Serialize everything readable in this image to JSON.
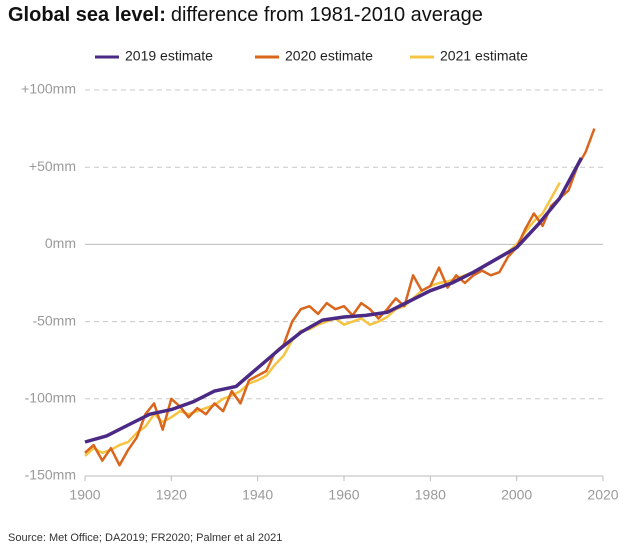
{
  "chart_data": {
    "type": "line",
    "title": "Global sea level:",
    "subtitle": "difference from 1981-2010 average",
    "source": "Source: Met Office; DA2019; FR2020; Palmer et al 2021",
    "xlim": [
      1900,
      2020
    ],
    "xticks": [
      1900,
      1920,
      1940,
      1960,
      1980,
      2000,
      2020
    ],
    "ylim": [
      -150,
      100
    ],
    "yticks": [
      {
        "value": -150,
        "label": "-150mm"
      },
      {
        "value": -100,
        "label": "-100mm"
      },
      {
        "value": -50,
        "label": "-50mm"
      },
      {
        "value": 0,
        "label": "0mm"
      },
      {
        "value": 50,
        "label": "+50mm"
      },
      {
        "value": 100,
        "label": "+100mm"
      }
    ],
    "grid": true,
    "legend": "top",
    "series": [
      {
        "name": "2021 estimate",
        "color": "#f6c443",
        "x": [
          1900,
          1902,
          1904,
          1906,
          1908,
          1910,
          1912,
          1914,
          1916,
          1918,
          1920,
          1922,
          1924,
          1926,
          1928,
          1930,
          1932,
          1934,
          1936,
          1938,
          1940,
          1942,
          1944,
          1946,
          1948,
          1950,
          1952,
          1954,
          1956,
          1958,
          1960,
          1962,
          1964,
          1966,
          1968,
          1970,
          1972,
          1974,
          1976,
          1978,
          1980,
          1982,
          1984,
          1986,
          1988,
          1990,
          1992,
          1994,
          1996,
          1998,
          2000,
          2002,
          2004,
          2006,
          2008,
          2010
        ],
        "values": [
          -137,
          -132,
          -135,
          -133,
          -130,
          -128,
          -122,
          -118,
          -110,
          -115,
          -112,
          -108,
          -110,
          -108,
          -106,
          -104,
          -100,
          -98,
          -95,
          -90,
          -88,
          -85,
          -78,
          -72,
          -62,
          -56,
          -55,
          -52,
          -50,
          -48,
          -52,
          -50,
          -48,
          -52,
          -50,
          -47,
          -42,
          -40,
          -35,
          -30,
          -27,
          -25,
          -24,
          -22,
          -20,
          -18,
          -15,
          -12,
          -8,
          -5,
          0,
          8,
          15,
          20,
          30,
          40
        ]
      },
      {
        "name": "2020 estimate",
        "color": "#d9661c",
        "x": [
          1900,
          1902,
          1904,
          1906,
          1908,
          1910,
          1912,
          1914,
          1916,
          1918,
          1920,
          1922,
          1924,
          1926,
          1928,
          1930,
          1932,
          1934,
          1936,
          1938,
          1940,
          1942,
          1944,
          1946,
          1948,
          1950,
          1952,
          1954,
          1956,
          1958,
          1960,
          1962,
          1964,
          1966,
          1968,
          1970,
          1972,
          1974,
          1976,
          1978,
          1980,
          1982,
          1984,
          1986,
          1988,
          1990,
          1992,
          1994,
          1996,
          1998,
          2000,
          2002,
          2004,
          2006,
          2008,
          2010,
          2012,
          2014,
          2016,
          2018
        ],
        "values": [
          -135,
          -130,
          -140,
          -132,
          -143,
          -133,
          -125,
          -110,
          -103,
          -120,
          -100,
          -105,
          -112,
          -106,
          -110,
          -103,
          -108,
          -95,
          -103,
          -88,
          -85,
          -82,
          -70,
          -65,
          -50,
          -42,
          -40,
          -45,
          -38,
          -42,
          -40,
          -46,
          -38,
          -42,
          -48,
          -42,
          -35,
          -40,
          -20,
          -30,
          -27,
          -15,
          -28,
          -20,
          -25,
          -20,
          -17,
          -20,
          -18,
          -8,
          -2,
          10,
          20,
          12,
          25,
          30,
          35,
          50,
          60,
          75
        ]
      },
      {
        "name": "2019 estimate",
        "color": "#4b2a85",
        "x": [
          1900,
          1905,
          1910,
          1915,
          1920,
          1925,
          1930,
          1935,
          1940,
          1945,
          1950,
          1955,
          1960,
          1965,
          1970,
          1975,
          1980,
          1985,
          1990,
          1995,
          2000,
          2005,
          2010,
          2015
        ],
        "values": [
          -128,
          -124,
          -117,
          -110,
          -107,
          -102,
          -95,
          -92,
          -80,
          -68,
          -57,
          -49,
          -47,
          -46,
          -44,
          -37,
          -30,
          -25,
          -18,
          -10,
          -2,
          13,
          30,
          56
        ]
      }
    ]
  }
}
